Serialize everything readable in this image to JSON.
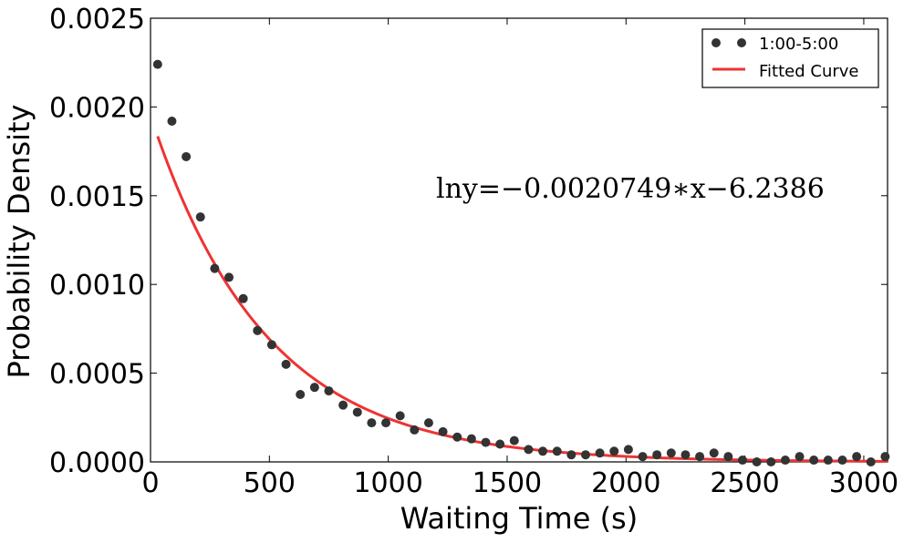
{
  "chart_data": {
    "type": "scatter",
    "xlabel": "Waiting Time (s)",
    "ylabel": "Probability Density",
    "xlim": [
      0,
      3100
    ],
    "ylim": [
      0,
      0.0025
    ],
    "x_ticks": [
      "0",
      "500",
      "1000",
      "1500",
      "2000",
      "2500",
      "3000"
    ],
    "x_tick_values": [
      0,
      500,
      1000,
      1500,
      2000,
      2500,
      3000
    ],
    "y_ticks": [
      "0.0000",
      "0.0005",
      "0.0010",
      "0.0015",
      "0.0020",
      "0.0025"
    ],
    "y_tick_values": [
      0,
      0.0005,
      0.001,
      0.0015,
      0.002,
      0.0025
    ],
    "grid": false,
    "legend_position": "top-right",
    "annotation": "lny=−0.0020749∗x−6.2386",
    "series": [
      {
        "name": "1:00-5:00",
        "type": "scatter",
        "color": "#333333",
        "x": [
          30,
          90,
          150,
          210,
          270,
          330,
          390,
          450,
          510,
          570,
          630,
          690,
          750,
          810,
          870,
          930,
          990,
          1050,
          1110,
          1170,
          1230,
          1290,
          1350,
          1410,
          1470,
          1530,
          1590,
          1650,
          1710,
          1770,
          1830,
          1890,
          1950,
          2010,
          2070,
          2130,
          2190,
          2250,
          2310,
          2370,
          2430,
          2490,
          2550,
          2610,
          2670,
          2730,
          2790,
          2850,
          2910,
          2970,
          3030,
          3090
        ],
        "y": [
          0.00224,
          0.00192,
          0.00172,
          0.00138,
          0.00109,
          0.00104,
          0.00092,
          0.00074,
          0.00066,
          0.00055,
          0.00038,
          0.00042,
          0.0004,
          0.00032,
          0.00028,
          0.00022,
          0.00022,
          0.00026,
          0.00018,
          0.00022,
          0.00017,
          0.00014,
          0.00013,
          0.00011,
          0.0001,
          0.00012,
          7e-05,
          6e-05,
          6e-05,
          4e-05,
          4e-05,
          5e-05,
          6e-05,
          7e-05,
          3e-05,
          4e-05,
          5e-05,
          4e-05,
          3e-05,
          5e-05,
          3e-05,
          1e-05,
          0.0,
          0.0,
          1e-05,
          3e-05,
          1e-05,
          1e-05,
          1e-05,
          3e-05,
          0.0,
          3e-05
        ]
      },
      {
        "name": "Fitted Curve",
        "type": "line",
        "color": "#ee3333",
        "slope": -0.0020749,
        "intercept": -6.2386,
        "x_start": 30,
        "x_end": 3100
      }
    ]
  }
}
